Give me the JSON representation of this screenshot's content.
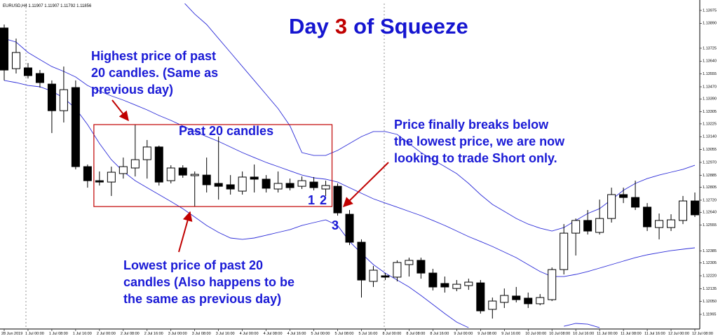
{
  "chart_data": {
    "type": "candlestick",
    "header": "EURUSD,H4  1.11907 1.11907 1.11792 1.11856",
    "title": {
      "pre": "Day",
      "num": "3",
      "post": "of Squeeze"
    },
    "categories": [
      "28 Jun 2019",
      null,
      "1 Jul 00:00",
      null,
      "1 Jul 08:00",
      null,
      "1 Jul 16:00",
      null,
      "2 Jul 00:00",
      null,
      "2 Jul 08:00",
      null,
      "2 Jul 16:00",
      null,
      "3 Jul 00:00",
      null,
      "3 Jul 08:00",
      null,
      "3 Jul 16:00",
      null,
      "4 Jul 00:00",
      null,
      "4 Jul 08:00",
      null,
      "4 Jul 16:00",
      null,
      "5 Jul 00:00",
      null,
      "5 Jul 08:00",
      null,
      "5 Jul 16:00",
      null,
      "8 Jul 00:00",
      null,
      "8 Jul 08:00",
      null,
      "8 Jul 16:00",
      null,
      "9 Jul 00:00",
      null,
      "9 Jul 08:00",
      null,
      "9 Jul 16:00",
      null,
      "10 Jul 00:00",
      null,
      "10 Jul 08:00",
      null,
      "10 Jul 16:00",
      null,
      "11 Jul 00:00",
      null,
      "11 Jul 08:00",
      null,
      "11 Jul 16:00",
      null,
      "12 Jul 00:00",
      null,
      "12 Jul 08:00"
    ],
    "open": [
      1.13859,
      1.1359,
      1.13595,
      1.13558,
      1.13488,
      1.13312,
      1.13465,
      1.12942,
      1.12849,
      1.1284,
      1.12896,
      1.12933,
      1.12988,
      1.13072,
      1.12849,
      1.12933,
      1.12882,
      1.12886,
      1.12831,
      1.12822,
      1.1278,
      1.12873,
      1.12859,
      1.12794,
      1.12831,
      1.12812,
      1.1284,
      1.12794,
      1.12812,
      1.12627,
      1.12442,
      1.12183,
      1.1222,
      1.12211,
      1.12294,
      1.12322,
      1.12238,
      1.12169,
      1.12136,
      1.12155,
      1.12173,
      1.11998,
      1.12044,
      1.12086,
      1.12072,
      1.12035,
      1.12062,
      1.12261,
      1.12502,
      1.12586,
      1.12507,
      1.12599,
      1.12757,
      1.12738,
      1.12674,
      1.12539,
      1.12539,
      1.12586,
      1.12715
    ],
    "high": [
      1.13882,
      1.13789,
      1.13627,
      1.13581,
      1.13512,
      1.13604,
      1.13512,
      1.12956,
      1.1291,
      1.12942,
      1.13002,
      1.1322,
      1.13118,
      1.13081,
      1.12951,
      1.12951,
      1.1291,
      1.13002,
      1.13141,
      1.12886,
      1.1291,
      1.12956,
      1.12886,
      1.1291,
      1.12863,
      1.12877,
      1.12873,
      1.12849,
      1.12831,
      1.12655,
      1.12461,
      1.12285,
      1.12238,
      1.12322,
      1.1234,
      1.1234,
      1.12266,
      1.12215,
      1.12192,
      1.12201,
      1.12192,
      1.12076,
      1.12136,
      1.12146,
      1.12109,
      1.12099,
      1.12275,
      1.12562,
      1.12599,
      1.12655,
      1.12724,
      1.12803,
      1.12803,
      1.12849,
      1.12701,
      1.12632,
      1.12627,
      1.12748,
      1.12771
    ],
    "low": [
      1.13512,
      1.13558,
      1.13525,
      1.13465,
      1.13164,
      1.13234,
      1.12924,
      1.12803,
      1.12817,
      1.12748,
      1.12863,
      1.12877,
      1.12863,
      1.12817,
      1.12831,
      1.12868,
      1.12678,
      1.12771,
      1.12724,
      1.12757,
      1.12757,
      1.12771,
      1.12771,
      1.12771,
      1.12785,
      1.12794,
      1.12785,
      1.12748,
      1.12618,
      1.12423,
      1.12076,
      1.12146,
      1.12192,
      1.12183,
      1.12215,
      1.12201,
      1.12123,
      1.12109,
      1.12118,
      1.12127,
      1.1197,
      1.11937,
      1.12007,
      1.12044,
      1.12007,
      1.12025,
      1.12053,
      1.12229,
      1.12354,
      1.12493,
      1.12493,
      1.12572,
      1.12701,
      1.12655,
      1.12516,
      1.12461,
      1.12516,
      1.12562,
      1.12609
    ],
    "close": [
      1.13581,
      1.13697,
      1.13544,
      1.13498,
      1.13312,
      1.13451,
      1.12942,
      1.12849,
      1.1284,
      1.12905,
      1.12942,
      1.12988,
      1.13072,
      1.1284,
      1.12933,
      1.12886,
      1.12891,
      1.12822,
      1.12812,
      1.12794,
      1.12873,
      1.12859,
      1.12799,
      1.12831,
      1.12803,
      1.12849,
      1.12803,
      1.12817,
      1.12636,
      1.12442,
      1.12192,
      1.12257,
      1.12211,
      1.12308,
      1.12322,
      1.12238,
      1.12146,
      1.12146,
      1.12164,
      1.12178,
      1.11988,
      1.12053,
      1.1209,
      1.12062,
      1.12035,
      1.12076,
      1.12261,
      1.12502,
      1.12586,
      1.12516,
      1.12599,
      1.12757,
      1.12738,
      1.12674,
      1.12544,
      1.12586,
      1.1259,
      1.12715,
      1.12623
    ],
    "series": [
      {
        "color": "#2b2bd8",
        "values": [
          null,
          null,
          null,
          null,
          null,
          null,
          null,
          null,
          null,
          null,
          null,
          null,
          null,
          null,
          null,
          1.14035,
          1.13951,
          1.13882,
          1.13789,
          1.13697,
          1.13604,
          1.13512,
          1.13419,
          1.13326,
          1.13211,
          1.13035,
          1.13016,
          1.13016,
          1.13049,
          1.13095,
          1.13141,
          1.13174,
          1.13174,
          1.13155,
          1.13095,
          1.13035,
          1.12988,
          1.12942,
          1.12896,
          1.12831,
          1.12757,
          1.12692,
          1.12646,
          1.12599,
          1.12562,
          1.12535,
          1.12516,
          1.12539,
          1.12586,
          1.12632,
          1.12664,
          1.12724,
          1.12785,
          1.12831,
          1.12863,
          1.12886,
          1.12905,
          1.12924,
          1.12951
        ]
      },
      {
        "color": "#2b2bd8",
        "values": [
          1.13789,
          1.13766,
          1.13697,
          1.1365,
          1.13604,
          1.13572,
          1.13535,
          1.13479,
          1.13442,
          1.1341,
          1.13382,
          1.1335,
          1.13317,
          1.1328,
          1.13248,
          1.13211,
          1.13174,
          1.13141,
          1.13109,
          1.13072,
          1.13035,
          1.13002,
          1.1297,
          1.12942,
          1.12914,
          1.12886,
          1.12868,
          1.12859,
          1.1284,
          1.12803,
          1.12766,
          1.12729,
          1.12701,
          1.12674,
          1.12646,
          1.12618,
          1.12586,
          1.12553,
          1.12516,
          1.12479,
          1.12447,
          1.12414,
          1.12377,
          1.1234,
          1.12294,
          1.12248,
          1.12215,
          1.12215,
          1.12229,
          1.12248,
          1.12271,
          1.12294,
          1.12317,
          1.1234,
          1.12359,
          1.12373,
          1.12386,
          1.12396,
          1.12405
        ]
      },
      {
        "color": "#2b2bd8",
        "values": [
          1.13512,
          1.13498,
          1.13479,
          1.1347,
          1.13442,
          1.13396,
          1.13326,
          1.1322,
          1.13095,
          1.12988,
          1.1291,
          1.12849,
          1.12803,
          1.12757,
          1.12711,
          1.12664,
          1.12609,
          1.12553,
          1.12507,
          1.1247,
          1.12461,
          1.1247,
          1.12488,
          1.12507,
          1.12525,
          1.12553,
          1.12572,
          1.1259,
          1.12553,
          1.12447,
          1.12368,
          1.12294,
          1.12238,
          1.12192,
          1.12146,
          1.1209,
          1.1203,
          1.1197,
          1.11914,
          1.11877,
          null,
          null,
          null,
          null,
          null,
          null,
          null,
          1.11886,
          1.11905,
          1.119,
          1.11877,
          null,
          null,
          null,
          null,
          null,
          null,
          null,
          null
        ]
      }
    ],
    "range_box": {
      "high": 1.1322,
      "low": 1.12678
    },
    "ylim": [
      1.11868,
      1.14021
    ],
    "yticks": [
      1.13975,
      {
        "value": 1.1389,
        "label": "1.13890"
      },
      1.13725,
      {
        "value": 1.1364,
        "label": "1.13640"
      },
      1.13555,
      {
        "value": 1.1347,
        "label": "1.13470"
      },
      {
        "value": 1.1339,
        "label": "1.13390"
      },
      1.13305,
      1.13225,
      {
        "value": 1.1314,
        "label": "1.13140"
      },
      1.13055,
      {
        "value": 1.1297,
        "label": "1.12970"
      },
      1.12885,
      1.12805,
      {
        "value": 1.1272,
        "label": "1.12720"
      },
      {
        "value": 1.1264,
        "label": "1.12640"
      },
      1.12555,
      1.12385,
      1.12305,
      {
        "value": 1.1222,
        "label": "1.12220"
      },
      1.12135,
      {
        "value": 1.1205,
        "label": "1.12050"
      },
      1.11965
    ],
    "annotations": [
      {
        "lines": [
          "Highest price of past",
          "20 candles. (Same as",
          "previous day)"
        ]
      },
      {
        "lines": [
          "Past 20 candles"
        ]
      },
      {
        "lines": [
          "Price finally breaks below",
          "the lowest price, we are now",
          "looking to trade Short only."
        ]
      },
      {
        "lines": [
          "Lowest price of past 20",
          "candles (Also happens to be",
          "the same as previous day)"
        ]
      },
      {
        "lines": [
          "1"
        ]
      },
      {
        "lines": [
          "2"
        ]
      },
      {
        "lines": [
          "3"
        ]
      }
    ]
  }
}
